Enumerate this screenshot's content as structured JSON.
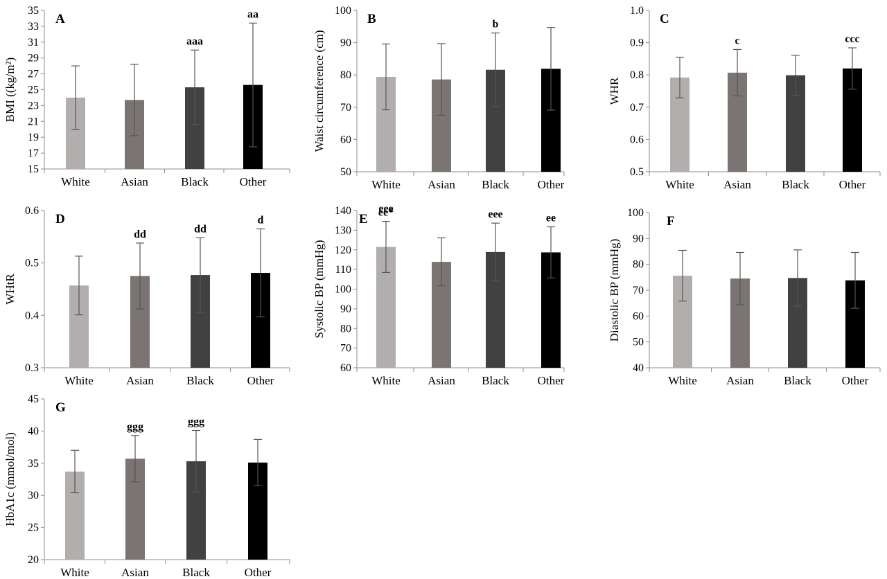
{
  "colors": {
    "White": "#b1aead",
    "Asian": "#7a7473",
    "Black": "#414141",
    "Other": "#000000",
    "axis": "#8c8c8c",
    "error_bar": "#555555"
  },
  "chart_data": [
    {
      "type": "bar",
      "panel": "A",
      "ylabel": "BMI ((kg/m²)",
      "ylim": [
        15,
        35
      ],
      "yticks": [
        "15",
        "17",
        "19",
        "21",
        "23",
        "25",
        "27",
        "29",
        "31",
        "33",
        "35"
      ],
      "categories": [
        "White",
        "Asian",
        "Black",
        "Other"
      ],
      "values": [
        24.0,
        23.7,
        25.3,
        25.6
      ],
      "errors": [
        4.0,
        4.5,
        4.7,
        7.8
      ],
      "annotations": [
        "",
        "",
        "aaa",
        "aa"
      ]
    },
    {
      "type": "bar",
      "panel": "B",
      "ylabel": "Waist circumference (cm)",
      "ylim": [
        50,
        100
      ],
      "yticks": [
        "50",
        "60",
        "70",
        "80",
        "90",
        "100"
      ],
      "categories": [
        "White",
        "Asian",
        "Black",
        "Other"
      ],
      "values": [
        79.4,
        78.6,
        81.6,
        81.9
      ],
      "errors": [
        10.2,
        11.1,
        11.4,
        12.8
      ],
      "annotations": [
        "",
        "",
        "b",
        ""
      ]
    },
    {
      "type": "bar",
      "panel": "C",
      "ylabel": "WHR",
      "ylim": [
        0.5,
        1.0
      ],
      "yticks": [
        "0.5",
        "0.6",
        "0.7",
        "0.8",
        "0.9",
        "1.0"
      ],
      "categories": [
        "White",
        "Asian",
        "Black",
        "Other"
      ],
      "values": [
        0.792,
        0.807,
        0.799,
        0.82
      ],
      "errors": [
        0.063,
        0.072,
        0.062,
        0.064
      ],
      "annotations": [
        "",
        "c",
        "",
        "ccc"
      ]
    },
    {
      "type": "bar",
      "panel": "D",
      "ylabel": "WHtR",
      "ylim": [
        0.3,
        0.6
      ],
      "yticks": [
        "0.3",
        "0.4",
        "0.5",
        "0.6"
      ],
      "categories": [
        "White",
        "Asian",
        "Black",
        "Other"
      ],
      "values": [
        0.457,
        0.475,
        0.477,
        0.481
      ],
      "errors": [
        0.056,
        0.063,
        0.071,
        0.084
      ],
      "annotations": [
        "",
        "dd",
        "dd",
        "d"
      ]
    },
    {
      "type": "bar",
      "panel": "E",
      "ylabel": "Systolic BP (mmHg)",
      "ylim": [
        60,
        140
      ],
      "yticks": [
        "60",
        "70",
        "80",
        "90",
        "100",
        "110",
        "120",
        "130",
        "140"
      ],
      "categories": [
        "White",
        "Asian",
        "Black",
        "Other"
      ],
      "values": [
        121.5,
        113.9,
        118.9,
        118.7
      ],
      "errors": [
        13.0,
        12.2,
        14.7,
        13.0
      ],
      "annotations": [
        "eee\nee*",
        "",
        "eee",
        "ee"
      ]
    },
    {
      "type": "bar",
      "panel": "F",
      "ylabel": "Diastolic BP (mmHg)",
      "ylim": [
        40,
        100
      ],
      "yticks": [
        "40",
        "50",
        "60",
        "70",
        "80",
        "90",
        "100"
      ],
      "categories": [
        "White",
        "Asian",
        "Black",
        "Other"
      ],
      "values": [
        75.6,
        74.5,
        74.7,
        73.8
      ],
      "errors": [
        9.8,
        10.1,
        10.9,
        10.8
      ],
      "annotations": [
        "",
        "",
        "",
        ""
      ]
    },
    {
      "type": "bar",
      "panel": "G",
      "ylabel": "HbA1c (mmol/mol)",
      "ylim": [
        20,
        45
      ],
      "yticks": [
        "20",
        "25",
        "30",
        "35",
        "40",
        "45"
      ],
      "categories": [
        "White",
        "Asian",
        "Black",
        "Other"
      ],
      "values": [
        33.7,
        35.7,
        35.3,
        35.1
      ],
      "errors": [
        3.3,
        3.6,
        4.8,
        3.6
      ],
      "annotations": [
        "",
        "ggg",
        "ggg",
        ""
      ]
    }
  ]
}
